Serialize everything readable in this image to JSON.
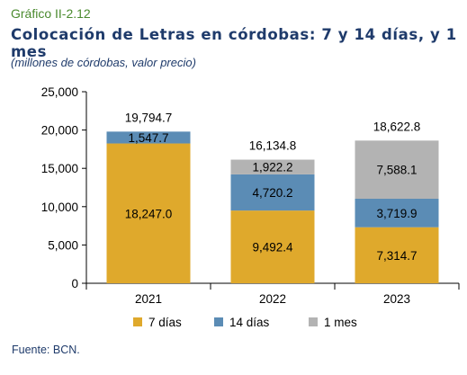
{
  "header": {
    "figure_number": "Gráfico II-2.12",
    "title": "Colocación de Letras en córdobas: 7 y 14 días, y 1 mes",
    "subtitle": "(millones de córdobas, valor precio)"
  },
  "footer": {
    "source": "Fuente: BCN."
  },
  "chart_data": {
    "type": "bar",
    "stacked": true,
    "categories": [
      "2021",
      "2022",
      "2023"
    ],
    "series": [
      {
        "name": "7 días",
        "color": "#dfa92c",
        "values": [
          18247.0,
          9492.4,
          7314.7
        ],
        "labels": [
          "18,247.0",
          "9,492.4",
          "7,314.7"
        ]
      },
      {
        "name": "14 días",
        "color": "#5b8cb5",
        "values": [
          1547.7,
          4720.2,
          3719.9
        ],
        "labels": [
          "1,547.7",
          "4,720.2",
          "3,719.9"
        ]
      },
      {
        "name": "1 mes",
        "color": "#b3b3b3",
        "values": [
          0,
          1922.2,
          7588.1
        ],
        "labels": [
          "",
          "1,922.2",
          "7,588.1"
        ]
      }
    ],
    "totals": [
      19794.7,
      16134.8,
      18622.8
    ],
    "total_labels": [
      "19,794.7",
      "16,134.8",
      "18,622.8"
    ],
    "ylim": [
      0,
      25000
    ],
    "yticks": [
      0,
      5000,
      10000,
      15000,
      20000,
      25000
    ],
    "ytick_labels": [
      "0",
      "5,000",
      "10,000",
      "15,000",
      "20,000",
      "25,000"
    ],
    "legend_position": "bottom",
    "grid": false
  }
}
